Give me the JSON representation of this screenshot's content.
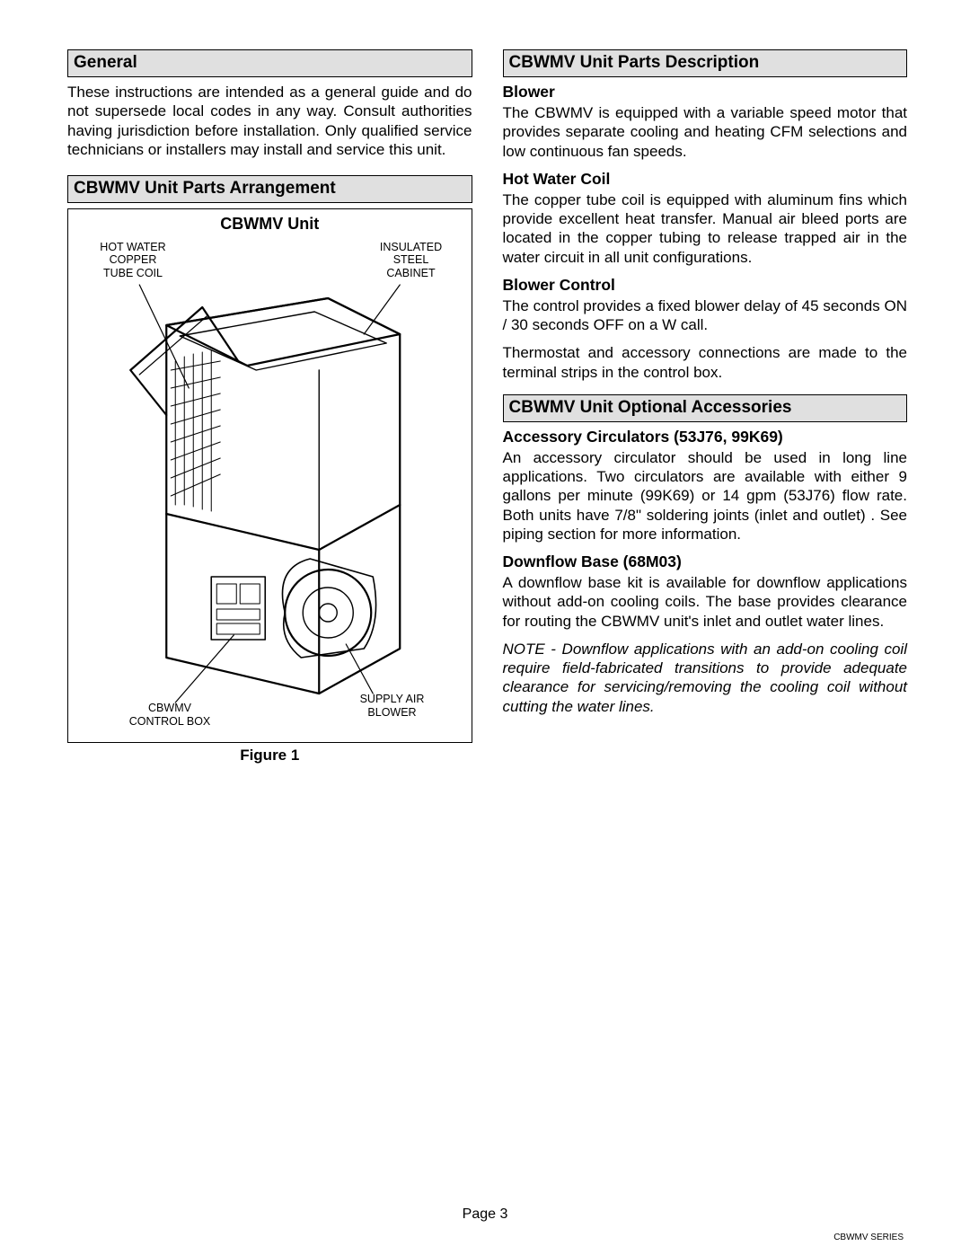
{
  "left": {
    "head1": "General",
    "p1": "These instructions are intended as a general guide and do not supersede local codes in any way. Consult authorities having jurisdiction before installation. Only qualified service technicians or installers may install and service this unit.",
    "head2": "CBWMV Unit Parts Arrangement",
    "fig_title": "CBWMV Unit",
    "callouts": {
      "coil": "HOT WATER\nCOPPER\nTUBE COIL",
      "cabinet": "INSULATED\nSTEEL\nCABINET",
      "control": "CBWMV\nCONTROL BOX",
      "blower": "SUPPLY AIR\nBLOWER"
    },
    "fig_caption": "Figure 1"
  },
  "right": {
    "head1": "CBWMV Unit Parts Description",
    "sub1": "Blower",
    "p1": "The CBWMV is equipped with a variable speed motor that provides separate cooling and heating CFM selections and low continuous fan speeds.",
    "sub2": "Hot Water Coil",
    "p2": "The copper tube coil is equipped with aluminum fins which provide excellent heat transfer. Manual air bleed ports are located in the copper tubing to release trapped air in the water circuit in all unit configurations.",
    "sub3": "Blower Control",
    "p3": "The control provides a fixed blower delay of 45 seconds ON / 30 seconds OFF on a W call.",
    "p4": "Thermostat and accessory connections are made to the terminal strips in the control box.",
    "head2": "CBWMV Unit Optional Accessories",
    "sub4": "Accessory Circulators (53J76, 99K69)",
    "p5": "An accessory circulator  should be used in long line applications. Two circulators are available with either 9 gallons per minute (99K69) or 14 gpm  (53J76) flow rate. Both units have 7/8\" soldering joints (inlet and outlet) . See piping section for more information.",
    "sub5": "Downflow Base (68M03)",
    "p6": "A downflow base kit is available for downflow applications without add-on cooling coils. The base provides clearance for routing the CBWMV unit's inlet and outlet water lines.",
    "note": "NOTE - Downflow applications with an add-on cooling coil require field-fabricated transitions to provide adequate clearance for servicing/removing the cooling coil without cutting the water lines."
  },
  "footer": {
    "page": "Page 3",
    "series": "CBWMV SERIES"
  },
  "diagram_style": {
    "stroke": "#000",
    "stroke_width": 2.2,
    "stroke_thin": 1.2
  }
}
